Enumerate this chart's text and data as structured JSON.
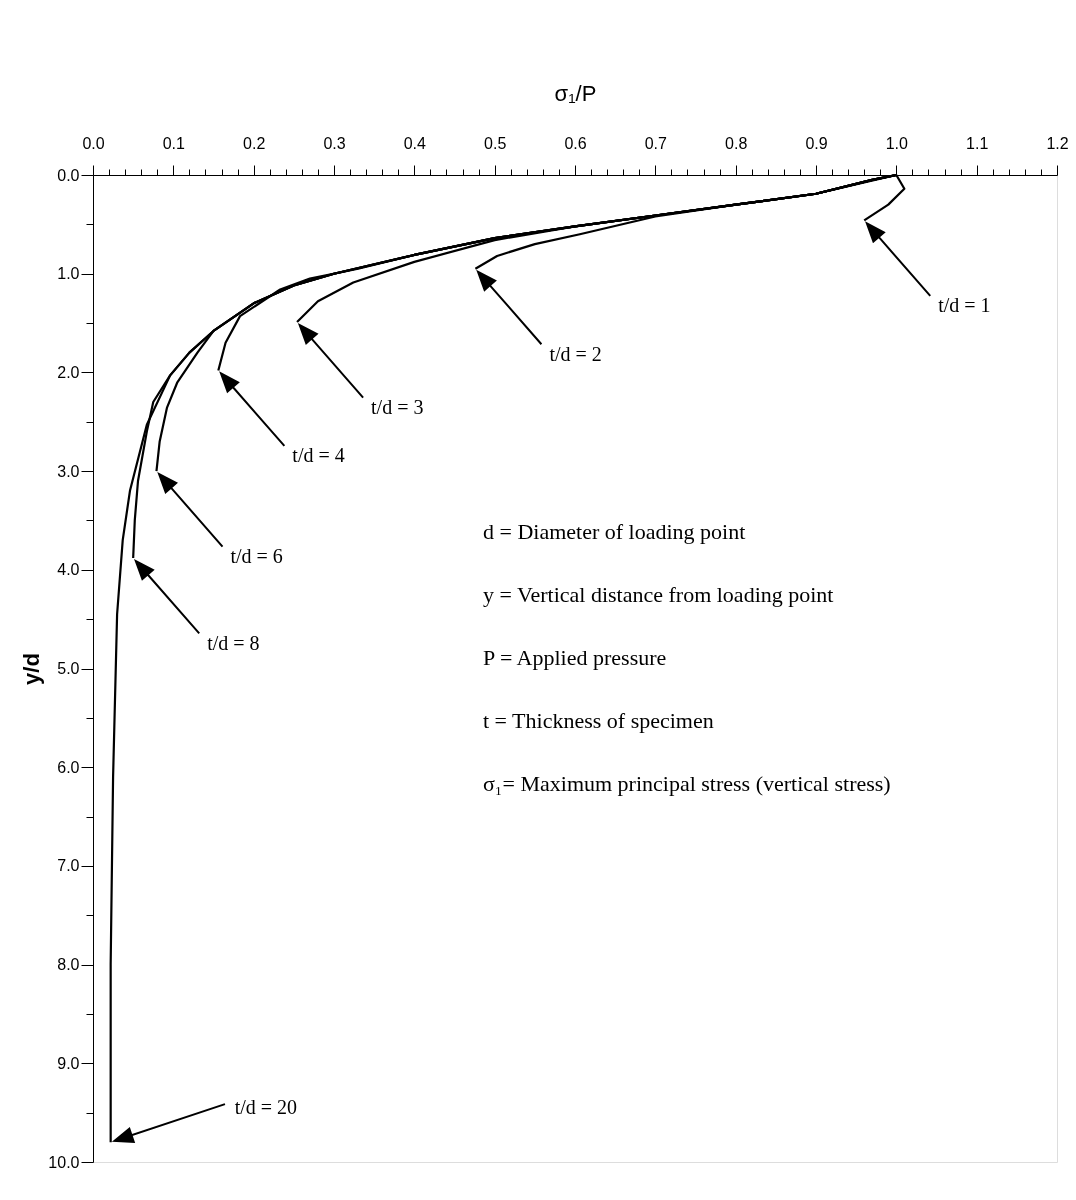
{
  "chart_data": {
    "type": "line",
    "xlabel": "σ₁/P",
    "ylabel": "y/d",
    "xlim": [
      0.0,
      1.2
    ],
    "ylim": [
      10.0,
      0.0
    ],
    "xticks": [
      {
        "value": 0.0,
        "label": "0.0"
      },
      {
        "value": 0.02,
        "label": null
      },
      {
        "value": 0.04,
        "label": null
      },
      {
        "value": 0.06,
        "label": null
      },
      {
        "value": 0.08,
        "label": null
      },
      {
        "value": 0.1,
        "label": "0.1"
      },
      {
        "value": 0.12,
        "label": null
      },
      {
        "value": 0.14,
        "label": null
      },
      {
        "value": 0.16,
        "label": null
      },
      {
        "value": 0.18,
        "label": null
      },
      {
        "value": 0.2,
        "label": "0.2"
      },
      {
        "value": 0.22,
        "label": null
      },
      {
        "value": 0.24,
        "label": null
      },
      {
        "value": 0.26,
        "label": null
      },
      {
        "value": 0.28,
        "label": null
      },
      {
        "value": 0.3,
        "label": "0.3"
      },
      {
        "value": 0.32,
        "label": null
      },
      {
        "value": 0.34,
        "label": null
      },
      {
        "value": 0.36,
        "label": null
      },
      {
        "value": 0.38,
        "label": null
      },
      {
        "value": 0.4,
        "label": "0.4"
      },
      {
        "value": 0.42,
        "label": null
      },
      {
        "value": 0.44,
        "label": null
      },
      {
        "value": 0.46,
        "label": null
      },
      {
        "value": 0.48,
        "label": null
      },
      {
        "value": 0.5,
        "label": "0.5"
      },
      {
        "value": 0.52,
        "label": null
      },
      {
        "value": 0.54,
        "label": null
      },
      {
        "value": 0.56,
        "label": null
      },
      {
        "value": 0.58,
        "label": null
      },
      {
        "value": 0.6,
        "label": "0.6"
      },
      {
        "value": 0.62,
        "label": null
      },
      {
        "value": 0.64,
        "label": null
      },
      {
        "value": 0.66,
        "label": null
      },
      {
        "value": 0.68,
        "label": null
      },
      {
        "value": 0.7,
        "label": "0.7"
      },
      {
        "value": 0.72,
        "label": null
      },
      {
        "value": 0.74,
        "label": null
      },
      {
        "value": 0.76,
        "label": null
      },
      {
        "value": 0.78,
        "label": null
      },
      {
        "value": 0.8,
        "label": "0.8"
      },
      {
        "value": 0.82,
        "label": null
      },
      {
        "value": 0.84,
        "label": null
      },
      {
        "value": 0.86,
        "label": null
      },
      {
        "value": 0.88,
        "label": null
      },
      {
        "value": 0.9,
        "label": "0.9"
      },
      {
        "value": 0.92,
        "label": null
      },
      {
        "value": 0.94,
        "label": null
      },
      {
        "value": 0.96,
        "label": null
      },
      {
        "value": 0.98,
        "label": null
      },
      {
        "value": 1.0,
        "label": "1.0"
      },
      {
        "value": 1.02,
        "label": null
      },
      {
        "value": 1.04,
        "label": null
      },
      {
        "value": 1.06,
        "label": null
      },
      {
        "value": 1.08,
        "label": null
      },
      {
        "value": 1.1,
        "label": "1.1"
      },
      {
        "value": 1.12,
        "label": null
      },
      {
        "value": 1.14,
        "label": null
      },
      {
        "value": 1.16,
        "label": null
      },
      {
        "value": 1.18,
        "label": null
      },
      {
        "value": 1.2,
        "label": "1.2"
      }
    ],
    "yticks": [
      {
        "value": 0.0,
        "label": "0.0"
      },
      {
        "value": 0.5,
        "label": null
      },
      {
        "value": 1.0,
        "label": "1.0"
      },
      {
        "value": 1.5,
        "label": null
      },
      {
        "value": 2.0,
        "label": "2.0"
      },
      {
        "value": 2.5,
        "label": null
      },
      {
        "value": 3.0,
        "label": "3.0"
      },
      {
        "value": 3.5,
        "label": null
      },
      {
        "value": 4.0,
        "label": "4.0"
      },
      {
        "value": 4.5,
        "label": null
      },
      {
        "value": 5.0,
        "label": "5.0"
      },
      {
        "value": 5.5,
        "label": null
      },
      {
        "value": 6.0,
        "label": "6.0"
      },
      {
        "value": 6.5,
        "label": null
      },
      {
        "value": 7.0,
        "label": "7.0"
      },
      {
        "value": 7.5,
        "label": null
      },
      {
        "value": 8.0,
        "label": "8.0"
      },
      {
        "value": 8.5,
        "label": null
      },
      {
        "value": 9.0,
        "label": "9.0"
      },
      {
        "value": 9.5,
        "label": null
      },
      {
        "value": 10.0,
        "label": "10.0"
      }
    ],
    "grid": false,
    "marker": "none",
    "line_style": "solid",
    "series": [
      {
        "name": "t/d = 1",
        "color": "#000000",
        "x": [
          1.0,
          1.01,
          0.99,
          0.96
        ],
        "values": [
          0.0,
          0.14,
          0.3,
          0.46
        ]
      },
      {
        "name": "t/d = 2",
        "color": "#000000",
        "x": [
          1.0,
          0.9,
          0.8,
          0.7,
          0.606,
          0.55,
          0.503,
          0.476
        ],
        "values": [
          0.0,
          0.19,
          0.3,
          0.42,
          0.6,
          0.7,
          0.82,
          0.95
        ]
      },
      {
        "name": "t/d = 3",
        "color": "#000000",
        "x": [
          1.0,
          0.97,
          0.9,
          0.8,
          0.7,
          0.6,
          0.5,
          0.4,
          0.324,
          0.28,
          0.254
        ],
        "values": [
          0.0,
          0.05,
          0.19,
          0.3,
          0.41,
          0.52,
          0.66,
          0.88,
          1.09,
          1.28,
          1.49
        ]
      },
      {
        "name": "t/d = 4",
        "color": "#000000",
        "x": [
          1.0,
          0.97,
          0.9,
          0.8,
          0.7,
          0.6,
          0.5,
          0.4,
          0.33,
          0.27,
          0.233,
          0.183,
          0.165,
          0.156
        ],
        "values": [
          0.0,
          0.05,
          0.19,
          0.3,
          0.41,
          0.52,
          0.64,
          0.81,
          0.95,
          1.05,
          1.16,
          1.43,
          1.7,
          1.98
        ]
      },
      {
        "name": "t/d = 6",
        "color": "#000000",
        "x": [
          1.0,
          0.97,
          0.9,
          0.8,
          0.7,
          0.6,
          0.5,
          0.4,
          0.3,
          0.25,
          0.2,
          0.15,
          0.13,
          0.105,
          0.092,
          0.083,
          0.079
        ],
        "values": [
          0.0,
          0.05,
          0.19,
          0.3,
          0.41,
          0.52,
          0.64,
          0.81,
          1.0,
          1.12,
          1.3,
          1.58,
          1.8,
          2.1,
          2.36,
          2.7,
          3.0
        ]
      },
      {
        "name": "t/d = 8",
        "color": "#000000",
        "x": [
          1.0,
          0.97,
          0.9,
          0.8,
          0.7,
          0.6,
          0.5,
          0.4,
          0.3,
          0.25,
          0.2,
          0.15,
          0.12,
          0.096,
          0.075,
          0.067,
          0.056,
          0.052,
          0.05
        ],
        "values": [
          0.0,
          0.05,
          0.19,
          0.3,
          0.41,
          0.52,
          0.64,
          0.81,
          1.0,
          1.12,
          1.3,
          1.58,
          1.8,
          2.03,
          2.3,
          2.6,
          3.1,
          3.5,
          3.88
        ]
      },
      {
        "name": "t/d = 20",
        "color": "#000000",
        "x": [
          1.0,
          0.97,
          0.9,
          0.8,
          0.7,
          0.6,
          0.5,
          0.4,
          0.3,
          0.25,
          0.2,
          0.15,
          0.12,
          0.096,
          0.067,
          0.046,
          0.037,
          0.03,
          0.025,
          0.022,
          0.022
        ],
        "values": [
          0.0,
          0.05,
          0.19,
          0.3,
          0.41,
          0.52,
          0.64,
          0.81,
          1.0,
          1.12,
          1.3,
          1.58,
          1.8,
          2.03,
          2.53,
          3.2,
          3.7,
          4.45,
          6.1,
          8.0,
          9.8
        ]
      }
    ],
    "annotations": [
      "d  = Diameter of loading point",
      "y  = Vertical distance from loading point",
      "P  = Applied pressure",
      "t  = Thickness of specimen",
      "σ₁= Maximum principal stress (vertical stress)"
    ]
  }
}
